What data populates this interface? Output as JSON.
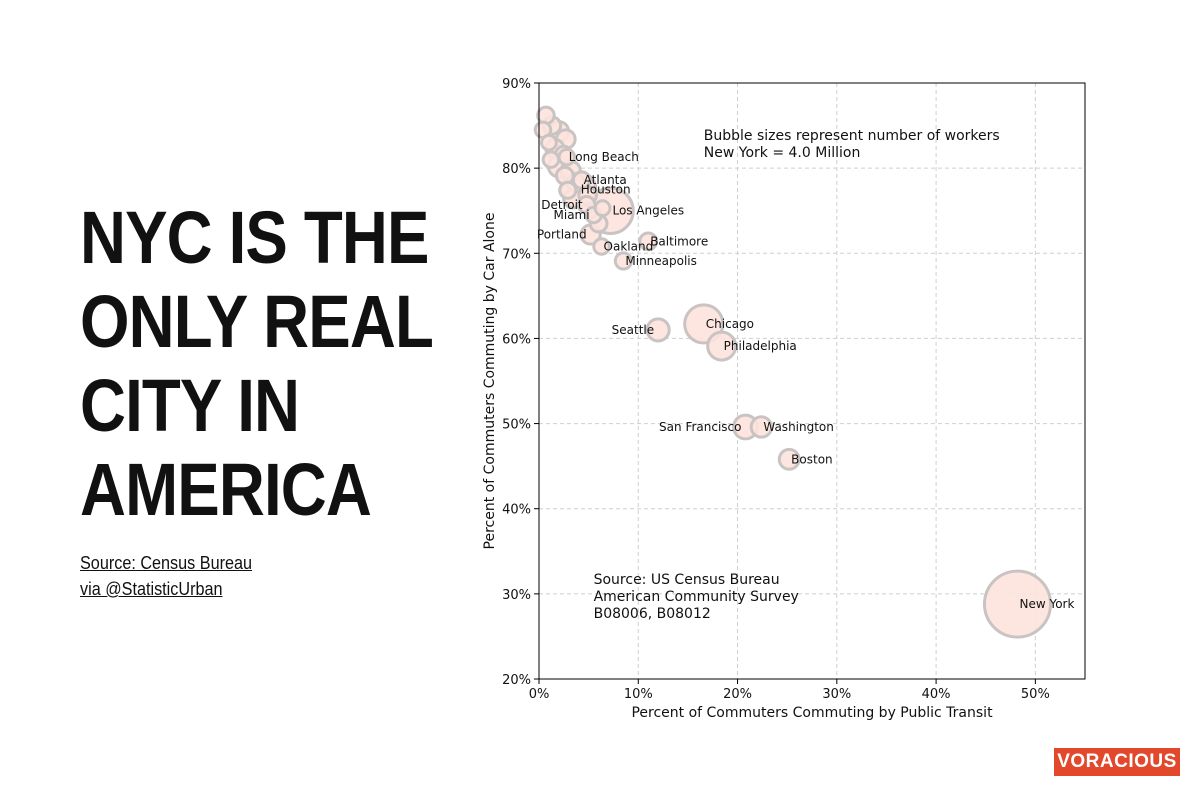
{
  "headline": {
    "lines": [
      "NYC IS THE",
      "ONLY REAL",
      "CITY IN",
      "AMERICA"
    ]
  },
  "source": {
    "line1": "Source: Census Bureau",
    "line2": "via @StatisticUrban"
  },
  "brand": {
    "label": "VORACIOUS",
    "color": "#e2492c"
  },
  "chart_data": {
    "type": "scatter",
    "xlabel": "Percent of Commuters Commuting by Public Transit",
    "ylabel": "Percent of Commuters Commuting by Car Alone",
    "xlim": [
      0,
      55
    ],
    "ylim": [
      20,
      90
    ],
    "x_ticks": [
      0,
      10,
      20,
      30,
      40,
      50
    ],
    "y_ticks": [
      20,
      30,
      40,
      50,
      60,
      70,
      80,
      90
    ],
    "x_tick_labels": [
      "0%",
      "10%",
      "20%",
      "30%",
      "40%",
      "50%"
    ],
    "y_tick_labels": [
      "20%",
      "30%",
      "40%",
      "50%",
      "60%",
      "70%",
      "80%",
      "90%"
    ],
    "grid": true,
    "bubble_fill": "#fde3dd",
    "bubble_stroke": "#c9c3c3",
    "annotations": {
      "bubble_note": [
        "Bubble sizes represent number of workers",
        "New York = 4.0 Million"
      ],
      "source_note": [
        "Source: US Census Bureau",
        "American Community Survey",
        "B08006, B08012"
      ]
    },
    "points": [
      {
        "label": "New York",
        "x": 48.2,
        "y": 28.8,
        "workers_m": 4.0,
        "label_pos": "right"
      },
      {
        "label": "Boston",
        "x": 25.2,
        "y": 45.8,
        "workers_m": 0.36,
        "label_pos": "right"
      },
      {
        "label": "Washington",
        "x": 22.4,
        "y": 49.6,
        "workers_m": 0.38,
        "label_pos": "right"
      },
      {
        "label": "San Francisco",
        "x": 20.8,
        "y": 49.6,
        "workers_m": 0.52,
        "label_pos": "left"
      },
      {
        "label": "Philadelphia",
        "x": 18.4,
        "y": 59.1,
        "workers_m": 0.72,
        "label_pos": "right"
      },
      {
        "label": "Chicago",
        "x": 16.6,
        "y": 61.7,
        "workers_m": 1.34,
        "label_pos": "right"
      },
      {
        "label": "Seattle",
        "x": 12.0,
        "y": 61.0,
        "workers_m": 0.45,
        "label_pos": "left"
      },
      {
        "label": "Minneapolis",
        "x": 8.5,
        "y": 69.1,
        "workers_m": 0.24,
        "label_pos": "right"
      },
      {
        "label": "Baltimore",
        "x": 11.0,
        "y": 71.4,
        "workers_m": 0.26,
        "label_pos": "right"
      },
      {
        "label": "Oakland",
        "x": 6.3,
        "y": 70.8,
        "workers_m": 0.22,
        "label_pos": "right"
      },
      {
        "label": "Portland",
        "x": 5.2,
        "y": 72.2,
        "workers_m": 0.34,
        "label_pos": "left"
      },
      {
        "label": "Los Angeles",
        "x": 7.2,
        "y": 75.0,
        "workers_m": 1.9,
        "label_pos": "right"
      },
      {
        "label": "Miami",
        "x": 5.5,
        "y": 74.5,
        "workers_m": 0.22,
        "label_pos": "left"
      },
      {
        "label": "Detroit",
        "x": 4.8,
        "y": 75.7,
        "workers_m": 0.25,
        "label_pos": "left"
      },
      {
        "label": "Houston",
        "x": 4.0,
        "y": 77.5,
        "workers_m": 1.1,
        "label_pos": "right"
      },
      {
        "label": "Atlanta",
        "x": 4.3,
        "y": 78.6,
        "workers_m": 0.25,
        "label_pos": "right"
      },
      {
        "label": "Long Beach",
        "x": 2.8,
        "y": 81.3,
        "workers_m": 0.22,
        "label_pos": "right"
      },
      {
        "label": "",
        "x": 0.7,
        "y": 86.2,
        "workers_m": 0.25
      },
      {
        "label": "",
        "x": 1.3,
        "y": 85.0,
        "workers_m": 0.28
      },
      {
        "label": "",
        "x": 0.4,
        "y": 84.5,
        "workers_m": 0.22
      },
      {
        "label": "",
        "x": 2.0,
        "y": 84.3,
        "workers_m": 0.36
      },
      {
        "label": "",
        "x": 2.7,
        "y": 83.4,
        "workers_m": 0.32
      },
      {
        "label": "",
        "x": 1.0,
        "y": 83.0,
        "workers_m": 0.2
      },
      {
        "label": "",
        "x": 1.6,
        "y": 82.3,
        "workers_m": 0.3
      },
      {
        "label": "",
        "x": 2.5,
        "y": 81.6,
        "workers_m": 0.25
      },
      {
        "label": "",
        "x": 1.2,
        "y": 81.0,
        "workers_m": 0.22
      },
      {
        "label": "",
        "x": 2.0,
        "y": 80.2,
        "workers_m": 0.4
      },
      {
        "label": "",
        "x": 3.2,
        "y": 79.7,
        "workers_m": 0.33
      },
      {
        "label": "",
        "x": 2.6,
        "y": 79.1,
        "workers_m": 0.26
      },
      {
        "label": "",
        "x": 3.7,
        "y": 78.3,
        "workers_m": 0.28
      },
      {
        "label": "",
        "x": 2.9,
        "y": 77.4,
        "workers_m": 0.24
      },
      {
        "label": "",
        "x": 3.4,
        "y": 76.4,
        "workers_m": 0.3
      },
      {
        "label": "",
        "x": 4.9,
        "y": 76.8,
        "workers_m": 0.28
      },
      {
        "label": "",
        "x": 6.4,
        "y": 75.3,
        "workers_m": 0.2
      },
      {
        "label": "",
        "x": 6.0,
        "y": 73.5,
        "workers_m": 0.26
      }
    ]
  }
}
